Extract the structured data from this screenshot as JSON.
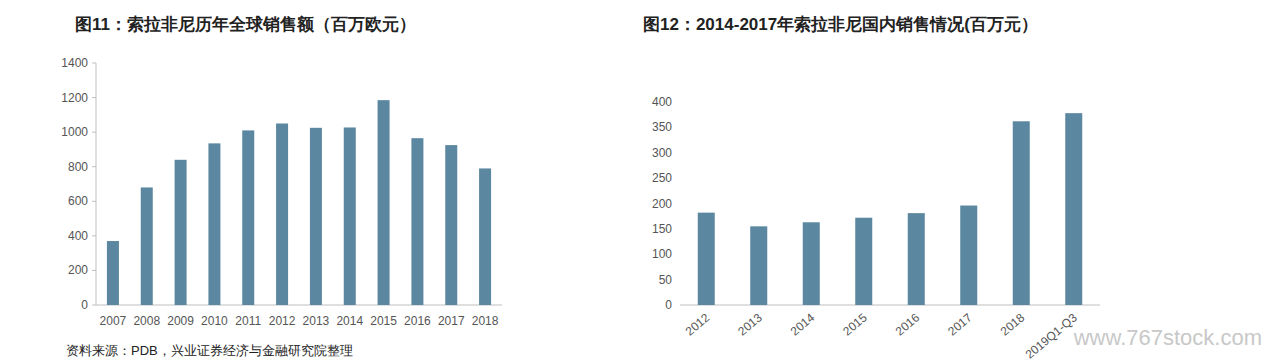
{
  "chart_data": [
    {
      "type": "bar",
      "title": "图11：索拉非尼历年全球销售额（百万欧元）",
      "categories": [
        "2007",
        "2008",
        "2009",
        "2010",
        "2011",
        "2012",
        "2013",
        "2014",
        "2015",
        "2016",
        "2017",
        "2018"
      ],
      "values": [
        370,
        680,
        840,
        935,
        1010,
        1050,
        1025,
        1027,
        1185,
        965,
        925,
        790
      ],
      "color": "#5b87a0",
      "ylim": [
        0,
        1400
      ],
      "yticks": [
        0,
        200,
        400,
        600,
        800,
        1000,
        1200,
        1400
      ],
      "grid": false
    },
    {
      "type": "bar",
      "title": "图12：2014-2017年索拉非尼国内销售情况(百万元）",
      "categories": [
        "2012",
        "2013",
        "2014",
        "2015",
        "2016",
        "2017",
        "2018",
        "2019Q1-Q3"
      ],
      "values": [
        182,
        155,
        163,
        172,
        181,
        196,
        362,
        378
      ],
      "color": "#5b87a0",
      "ylim": [
        0,
        400
      ],
      "yticks": [
        0,
        50,
        100,
        150,
        200,
        250,
        300,
        350,
        400
      ],
      "grid": false
    }
  ],
  "source": "资料来源：PDB，兴业证券经济与金融研究院整理",
  "watermark": "www.767stock.com"
}
